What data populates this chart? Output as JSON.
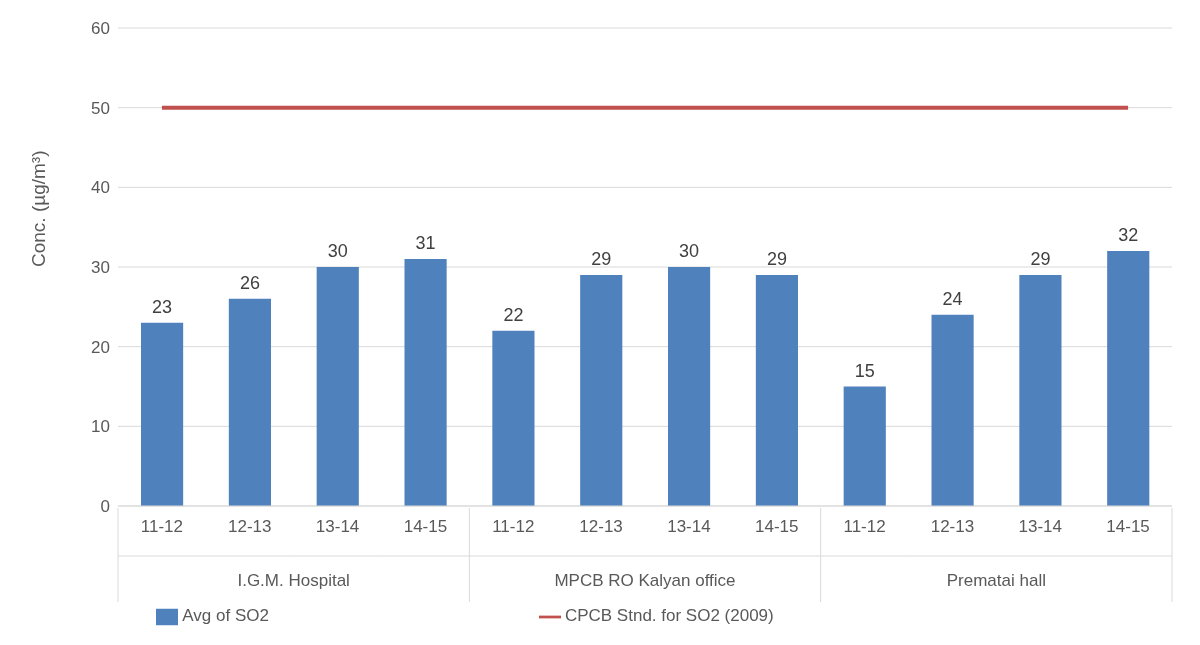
{
  "chart_data": {
    "type": "bar",
    "ylabel": "Conc. (µg/m³)",
    "categories": [
      "11-12",
      "12-13",
      "13-14",
      "14-15",
      "11-12",
      "12-13",
      "13-14",
      "14-15",
      "11-12",
      "12-13",
      "13-14",
      "14-15"
    ],
    "annotations": [
      "I.G.M. Hospital",
      "MPCB RO Kalyan office",
      "Prematai hall"
    ],
    "series": [
      {
        "name": "Avg of SO2",
        "color": "#4f81bd",
        "values": [
          23,
          26,
          30,
          31,
          22,
          29,
          30,
          29,
          15,
          24,
          29,
          32
        ],
        "value_labels": [
          "23",
          "26",
          "30",
          "31",
          "22",
          "29",
          "30",
          "29",
          "15",
          "24",
          "29",
          "32"
        ]
      },
      {
        "name": "CPCB Stnd. for SO2 (2009)",
        "type": "line",
        "color": "#c0504d",
        "values": [
          50,
          50,
          50,
          50,
          50,
          50,
          50,
          50,
          50,
          50,
          50,
          50
        ]
      }
    ],
    "ylim": [
      0,
      60
    ],
    "yticks": [
      0,
      10,
      20,
      30,
      40,
      50,
      60
    ],
    "grid": "y",
    "legend": "bottom",
    "marker": "none"
  }
}
